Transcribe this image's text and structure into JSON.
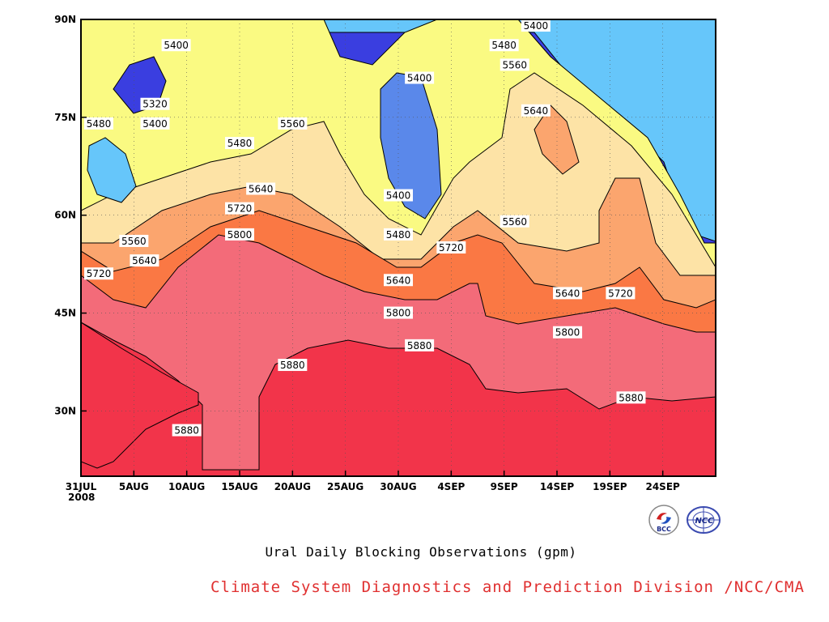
{
  "chart_data": {
    "type": "contour",
    "title": "Ural Daily Blocking Observations (gpm)",
    "x_axis": {
      "start": "31JUL 2008",
      "end": "29SEP 2008",
      "ticks": [
        "31JUL",
        "5AUG",
        "10AUG",
        "15AUG",
        "20AUG",
        "25AUG",
        "30AUG",
        "4SEP",
        "9SEP",
        "14SEP",
        "19SEP",
        "24SEP"
      ],
      "year_label": "2008"
    },
    "y_axis": {
      "range_deg": [
        20,
        90
      ],
      "ticks": [
        "30N",
        "45N",
        "60N",
        "75N",
        "90N"
      ]
    },
    "contour_levels": [
      5320,
      5400,
      5480,
      5560,
      5640,
      5720,
      5800,
      5880
    ],
    "fill_colors": {
      "below_5320": "#3a3ee0",
      "5320_5400": "#5a88ea",
      "5400_5480": "#66c6fa",
      "5480_5560": "#fafa82",
      "5560_5640": "#fde3a6",
      "5640_5720": "#fba56e",
      "5720_5800": "#fa7844",
      "5800_5880": "#f36b79",
      "above_5880": "#f2344a"
    },
    "contour_labels": [
      {
        "text": "5400",
        "date": "9AUG",
        "lat": 86
      },
      {
        "text": "5320",
        "date": "7AUG",
        "lat": 77
      },
      {
        "text": "5400",
        "date": "7AUG",
        "lat": 74
      },
      {
        "text": "5480",
        "date": "31JUL",
        "lat": 74
      },
      {
        "text": "5480",
        "date": "15AUG",
        "lat": 71
      },
      {
        "text": "5560",
        "date": "20AUG",
        "lat": 74
      },
      {
        "text": "5400",
        "date": "1SEP",
        "lat": 81
      },
      {
        "text": "5400",
        "date": "30AUG",
        "lat": 63
      },
      {
        "text": "5480",
        "date": "30AUG",
        "lat": 57
      },
      {
        "text": "5400",
        "date": "12SEP",
        "lat": 89
      },
      {
        "text": "5480",
        "date": "9SEP",
        "lat": 86
      },
      {
        "text": "5560",
        "date": "10SEP",
        "lat": 83
      },
      {
        "text": "5640",
        "date": "12SEP",
        "lat": 76
      },
      {
        "text": "5560",
        "date": "10SEP",
        "lat": 59
      },
      {
        "text": "5640",
        "date": "17AUG",
        "lat": 64
      },
      {
        "text": "5720",
        "date": "15AUG",
        "lat": 61
      },
      {
        "text": "5800",
        "date": "15AUG",
        "lat": 57
      },
      {
        "text": "5560",
        "date": "5AUG",
        "lat": 56
      },
      {
        "text": "5640",
        "date": "6AUG",
        "lat": 53
      },
      {
        "text": "5720",
        "date": "31JUL",
        "lat": 51
      },
      {
        "text": "5720",
        "date": "4SEP",
        "lat": 55
      },
      {
        "text": "5640",
        "date": "30AUG",
        "lat": 50
      },
      {
        "text": "5800",
        "date": "30AUG",
        "lat": 45
      },
      {
        "text": "5880",
        "date": "1SEP",
        "lat": 40
      },
      {
        "text": "5880",
        "date": "20AUG",
        "lat": 37
      },
      {
        "text": "5880",
        "date": "10AUG",
        "lat": 27
      },
      {
        "text": "5640",
        "date": "15SEP",
        "lat": 48
      },
      {
        "text": "5720",
        "date": "20SEP",
        "lat": 48
      },
      {
        "text": "5800",
        "date": "15SEP",
        "lat": 42
      },
      {
        "text": "5880",
        "date": "21SEP",
        "lat": 32
      }
    ]
  },
  "footer": {
    "title": "Ural Daily Blocking Observations (gpm)",
    "credit": "Climate System Diagnostics and Prediction Division /NCC/CMA",
    "logo_left_text": "BCC",
    "logo_right_text": "NCC"
  }
}
